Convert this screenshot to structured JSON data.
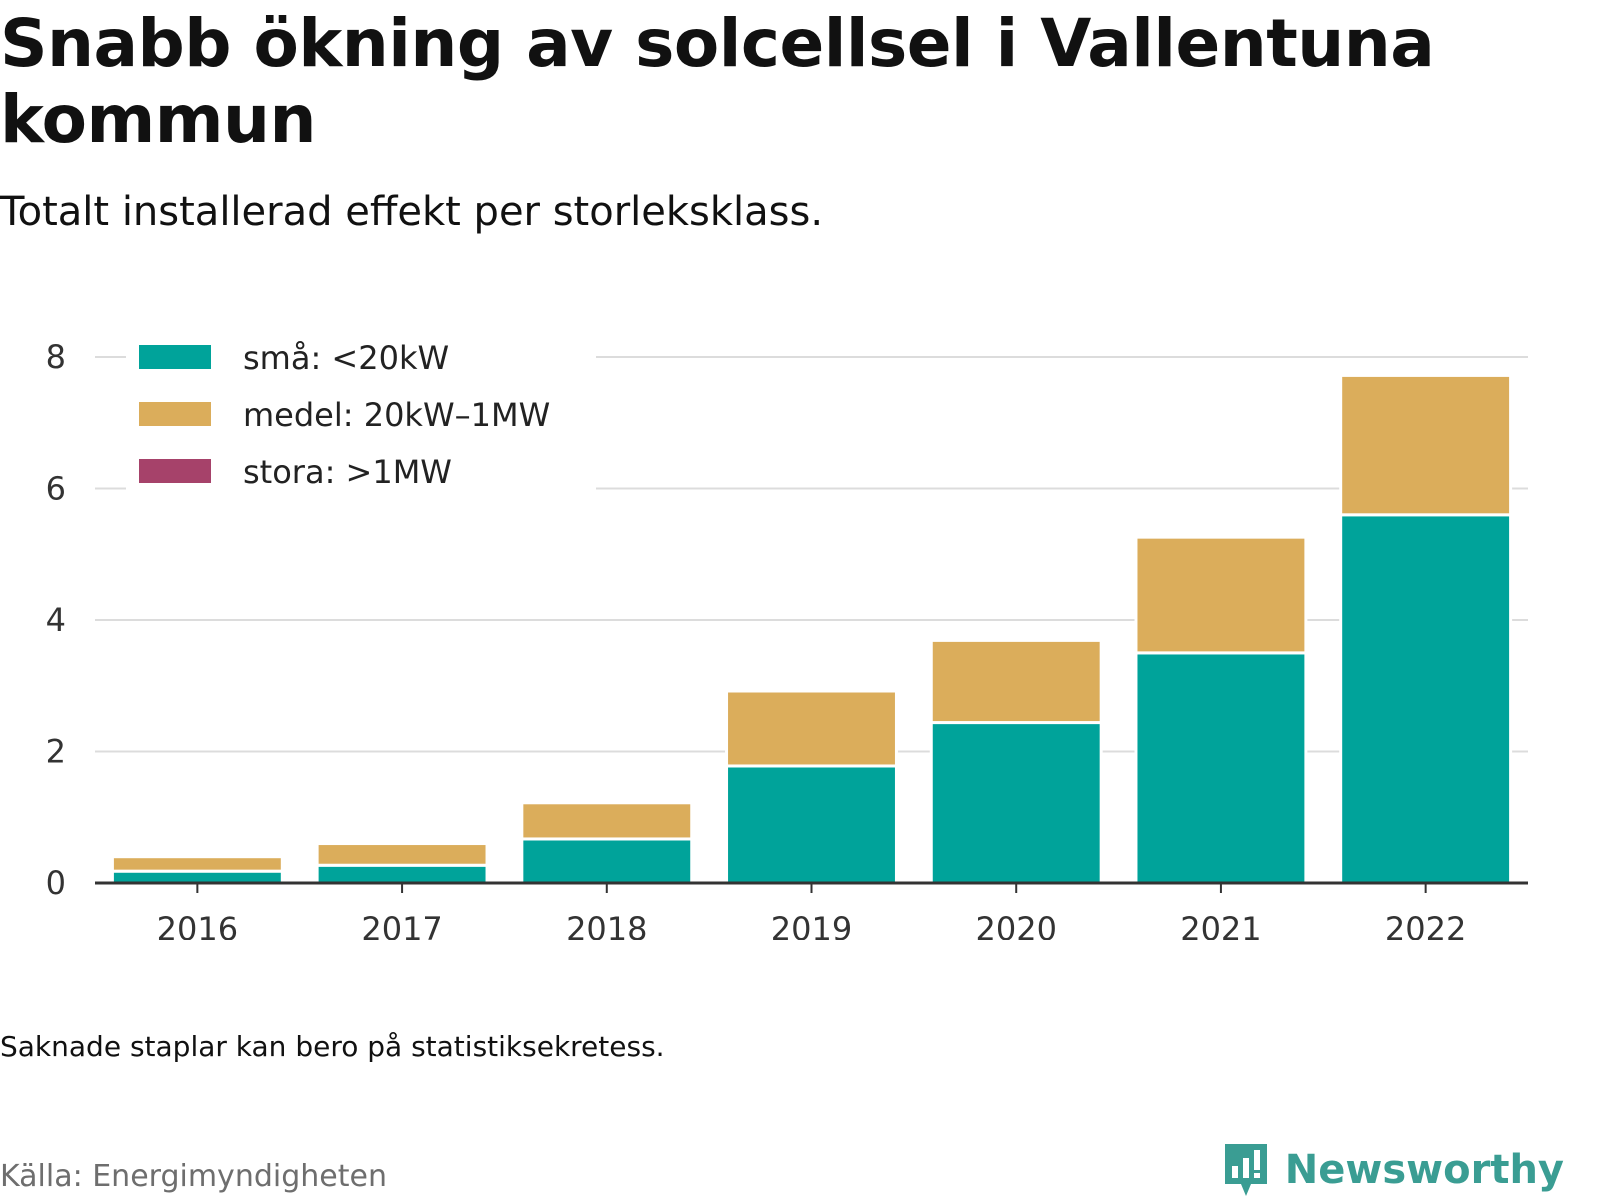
{
  "title": "Snabb ökning av solcellsel i Vallentuna kommun",
  "subtitle": "Totalt installerad effekt per storleksklass.",
  "note": "Saknade staplar kan bero på statistiksekretess.",
  "source": "Källa: Energimyndigheten",
  "brand": {
    "name": "Newsworthy",
    "icon": "newsworthy-logo-icon",
    "color": "#3a9d93"
  },
  "chart_data": {
    "type": "bar",
    "stacked": true,
    "categories": [
      "2016",
      "2017",
      "2018",
      "2019",
      "2020",
      "2021",
      "2022"
    ],
    "series": [
      {
        "name": "små: <20kW",
        "color": "#00a39a",
        "values": [
          0.18,
          0.27,
          0.67,
          1.78,
          2.44,
          3.5,
          5.6
        ]
      },
      {
        "name": "medel: 20kW–1MW",
        "color": "#dbad5b",
        "values": [
          0.22,
          0.33,
          0.55,
          1.14,
          1.25,
          1.76,
          2.12
        ]
      },
      {
        "name": "stora: >1MW",
        "color": "#a6426a",
        "values": [
          0,
          0,
          0,
          0,
          0,
          0,
          0
        ]
      }
    ],
    "ylim": [
      0,
      8
    ],
    "yticks": [
      0,
      2,
      4,
      6,
      8
    ],
    "grid": true,
    "legend": "top-left"
  }
}
